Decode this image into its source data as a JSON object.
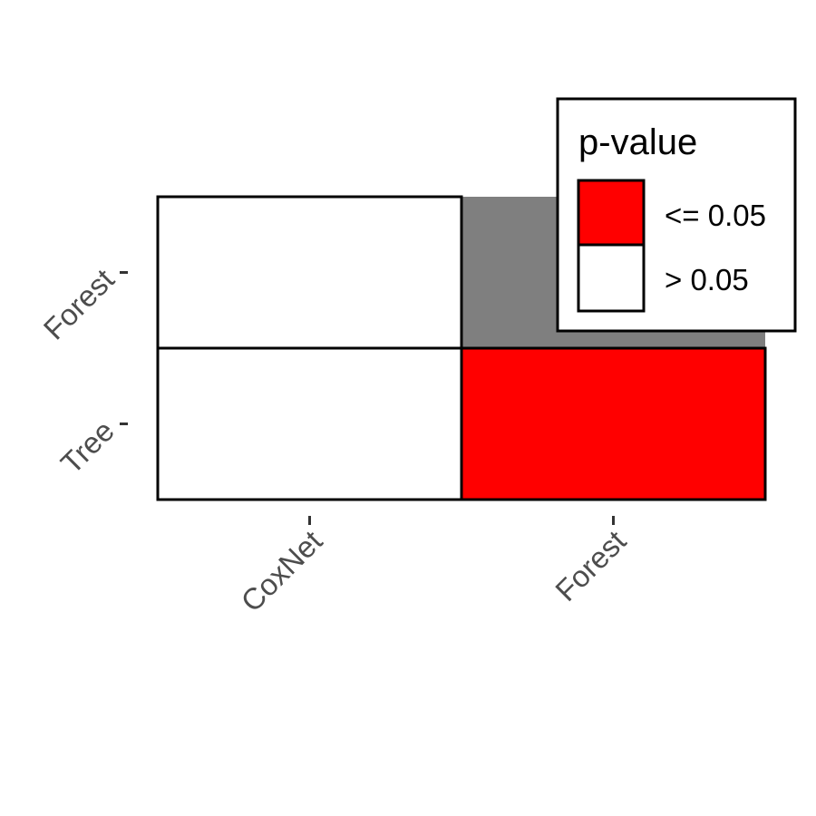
{
  "chart_data": {
    "type": "heatmap",
    "x_categories": [
      "CoxNet",
      "Forest"
    ],
    "y_categories": [
      "Forest",
      "Tree"
    ],
    "cells": [
      {
        "x": "CoxNet",
        "y": "Forest",
        "class": "> 0.05"
      },
      {
        "x": "Forest",
        "y": "Forest",
        "class": "NA"
      },
      {
        "x": "CoxNet",
        "y": "Tree",
        "class": "> 0.05"
      },
      {
        "x": "Forest",
        "y": "Tree",
        "class": "<= 0.05"
      }
    ],
    "legend": {
      "title": "p-value",
      "placement": "top-right",
      "entries": [
        {
          "label": "<= 0.05",
          "color": "#ff0000"
        },
        {
          "label": "> 0.05",
          "color": "#ffffff"
        }
      ]
    },
    "missing_color": "#7f7f7f",
    "grid": false
  }
}
